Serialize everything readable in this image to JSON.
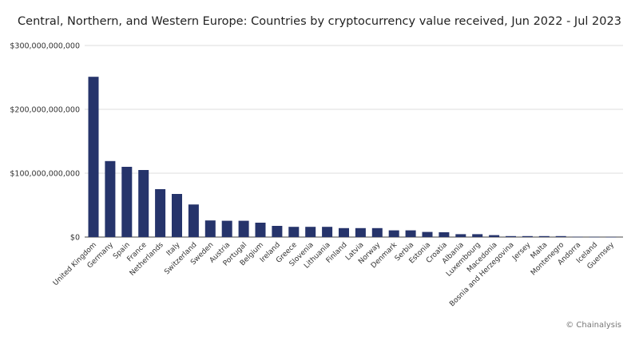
{
  "chart_data": {
    "type": "bar",
    "title": "Central, Northern, and Western Europe: Countries by cryptocurrency value received, Jun 2022 - Jul 2023",
    "xlabel": "",
    "ylabel": "",
    "ylim": [
      0,
      300000000000
    ],
    "yticks": [
      0,
      100000000000,
      200000000000,
      300000000000
    ],
    "ytick_labels": [
      "$0",
      "$100,000,000,000",
      "$200,000,000,000",
      "$300,000,000,000"
    ],
    "grid": true,
    "bar_color": "#26346b",
    "categories": [
      "United Kingdom",
      "Germany",
      "Spain",
      "France",
      "Netherlands",
      "Italy",
      "Switzerland",
      "Sweden",
      "Austria",
      "Portugal",
      "Belgium",
      "Ireland",
      "Greece",
      "Slovenia",
      "Lithuania",
      "Finland",
      "Latvia",
      "Norway",
      "Denmark",
      "Serbia",
      "Estonia",
      "Croatia",
      "Albania",
      "Luxembourg",
      "Macedonia",
      "Bosnia and Herzegovina",
      "Jersey",
      "Malta",
      "Montenegro",
      "Andorra",
      "Iceland",
      "Guernsey"
    ],
    "values": [
      251000000000,
      119000000000,
      110000000000,
      105000000000,
      75000000000,
      67500000000,
      51000000000,
      26000000000,
      25500000000,
      25500000000,
      22500000000,
      17500000000,
      16000000000,
      16000000000,
      16000000000,
      14000000000,
      14000000000,
      14000000000,
      10500000000,
      10500000000,
      8000000000,
      7500000000,
      4500000000,
      4500000000,
      3000000000,
      1500000000,
      1500000000,
      1500000000,
      1500000000,
      400000000,
      300000000,
      200000000
    ]
  },
  "credit": "© Chainalysis"
}
